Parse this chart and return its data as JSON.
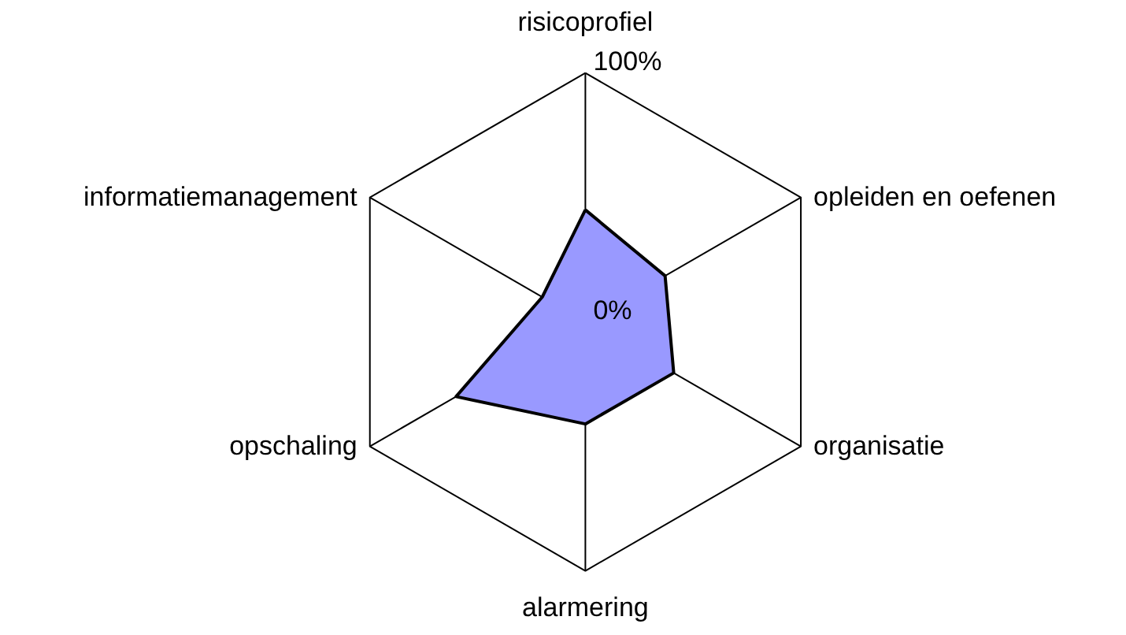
{
  "chart_data": {
    "type": "radar",
    "categories": [
      "risicoprofiel",
      "opleiden en oefenen",
      "organisatie",
      "alarmering",
      "opschaling",
      "informatiemanagement"
    ],
    "series": [
      {
        "color": "#9999ff",
        "values": [
          45,
          37,
          41,
          41,
          60,
          20
        ]
      }
    ],
    "ylim": [
      0,
      100
    ],
    "yticks": [
      {
        "value": 0,
        "label": "0%"
      },
      {
        "value": 100,
        "label": "100%"
      }
    ],
    "grid": true
  }
}
